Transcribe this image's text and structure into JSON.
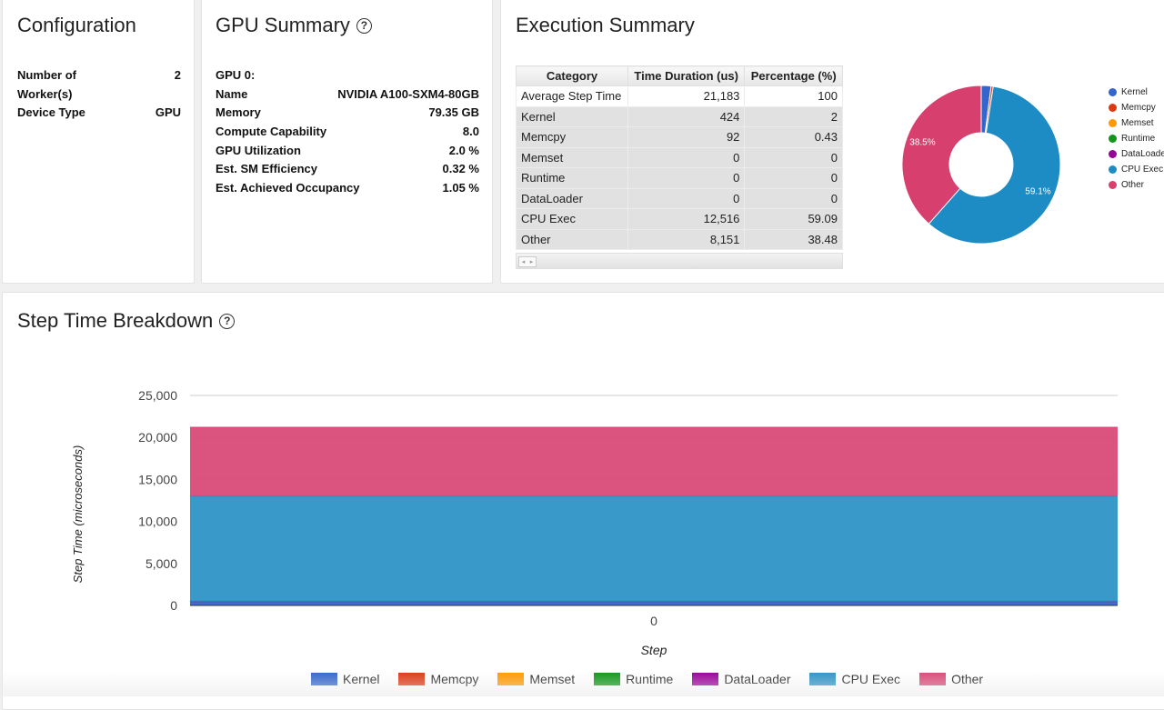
{
  "configuration": {
    "title": "Configuration",
    "rows": [
      {
        "key": "Number of Worker(s)",
        "key_line1": "Number of",
        "key_line2": "Worker(s)",
        "value": "2"
      },
      {
        "key": "Device Type",
        "value": "GPU"
      }
    ]
  },
  "gpu_summary": {
    "title": "GPU Summary",
    "help_icon": "?",
    "rows": [
      {
        "key": "GPU 0:",
        "value": ""
      },
      {
        "key": "Name",
        "value": "NVIDIA A100-SXM4-80GB"
      },
      {
        "key": "Memory",
        "value": "79.35 GB"
      },
      {
        "key": "Compute Capability",
        "value": "8.0"
      },
      {
        "key": "GPU Utilization",
        "value": "2.0 %"
      },
      {
        "key": "Est. SM Efficiency",
        "value": "0.32 %"
      },
      {
        "key": "Est. Achieved Occupancy",
        "value": "1.05 %"
      }
    ]
  },
  "execution_summary": {
    "title": "Execution Summary",
    "columns": [
      "Category",
      "Time Duration (us)",
      "Percentage (%)"
    ],
    "rows": [
      {
        "category": "Average Step Time",
        "duration": "21,183",
        "percentage": "100"
      },
      {
        "category": "Kernel",
        "duration": "424",
        "percentage": "2"
      },
      {
        "category": "Memcpy",
        "duration": "92",
        "percentage": "0.43"
      },
      {
        "category": "Memset",
        "duration": "0",
        "percentage": "0"
      },
      {
        "category": "Runtime",
        "duration": "0",
        "percentage": "0"
      },
      {
        "category": "DataLoader",
        "duration": "0",
        "percentage": "0"
      },
      {
        "category": "CPU Exec",
        "duration": "12,516",
        "percentage": "59.09"
      },
      {
        "category": "Other",
        "duration": "8,151",
        "percentage": "38.48"
      }
    ],
    "pie_legend": [
      "Kernel",
      "Memcpy",
      "Memset",
      "Runtime",
      "DataLoader",
      "CPU Exec",
      "Other"
    ],
    "pie_labels": {
      "cpu_exec": "59.1%",
      "other": "38.5%"
    }
  },
  "step_time": {
    "title": "Step Time Breakdown",
    "help_icon": "?"
  },
  "colors": {
    "Kernel": "#3366cc",
    "Memcpy": "#dc3912",
    "Memset": "#ff9900",
    "Runtime": "#109618",
    "DataLoader": "#990099",
    "CPU Exec": "#2e93c6",
    "Other": "#d94a78",
    "CPU Exec Pie": "#1d8bc4",
    "Other Pie": "#d63f6e"
  },
  "chart_data": [
    {
      "type": "pie",
      "title": "Execution Summary",
      "donut": true,
      "categories": [
        "Kernel",
        "Memcpy",
        "Memset",
        "Runtime",
        "DataLoader",
        "CPU Exec",
        "Other"
      ],
      "values": [
        2,
        0.43,
        0,
        0,
        0,
        59.09,
        38.48
      ],
      "slice_labels": [
        "",
        "",
        "",
        "",
        "",
        "59.1%",
        "38.5%"
      ],
      "legend": "right"
    },
    {
      "type": "area",
      "title": "Step Time Breakdown",
      "stacked": true,
      "x": [
        "0"
      ],
      "xlabel": "Step",
      "ylabel": "Step Time (microseconds)",
      "ylim": [
        0,
        25000
      ],
      "yticks": [
        0,
        5000,
        10000,
        15000,
        20000,
        25000
      ],
      "ytick_labels": [
        "0",
        "5,000",
        "10,000",
        "15,000",
        "20,000",
        "25,000"
      ],
      "series": [
        {
          "name": "Kernel",
          "values": [
            424
          ]
        },
        {
          "name": "Memcpy",
          "values": [
            92
          ]
        },
        {
          "name": "Memset",
          "values": [
            0
          ]
        },
        {
          "name": "Runtime",
          "values": [
            0
          ]
        },
        {
          "name": "DataLoader",
          "values": [
            0
          ]
        },
        {
          "name": "CPU Exec",
          "values": [
            12516
          ]
        },
        {
          "name": "Other",
          "values": [
            8151
          ]
        }
      ],
      "legend_entries": [
        "Kernel",
        "Memcpy",
        "Memset",
        "Runtime",
        "DataLoader",
        "CPU Exec",
        "Other"
      ],
      "legend": "bottom",
      "grid": true
    }
  ]
}
